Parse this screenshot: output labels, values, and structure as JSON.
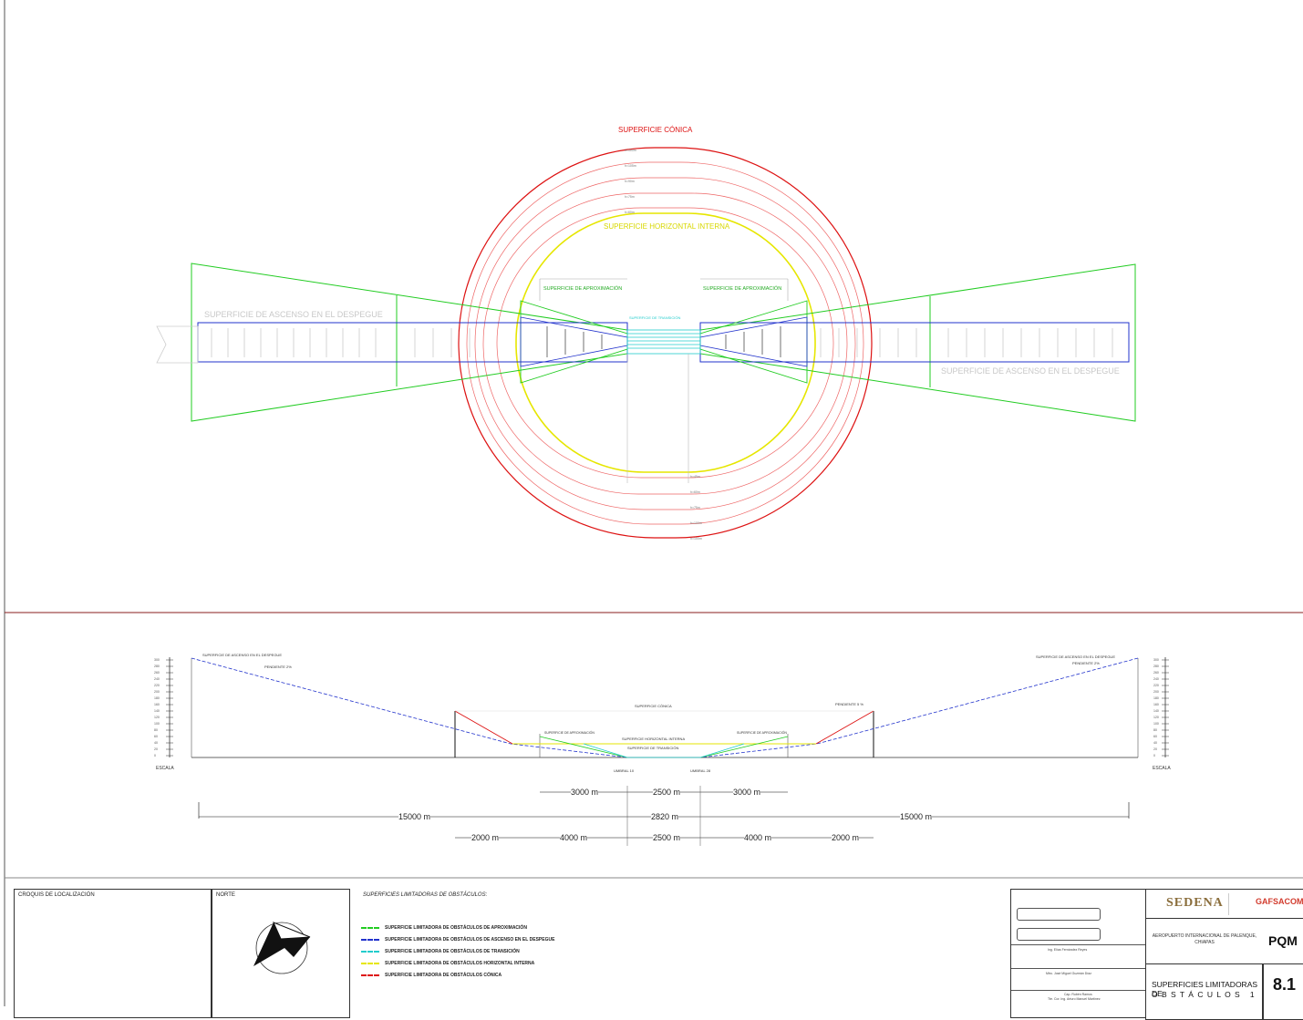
{
  "plan": {
    "conic_title": "SUPERFICIE CÓNICA",
    "horizontal_title": "SUPERFICIE HORIZONTAL INTERNA",
    "approach_left": "SUPERFICIE DE APROXIMACIÓN",
    "approach_right": "SUPERFICIE DE APROXIMACIÓN",
    "transition": "SUPERFICIE DE TRANSICIÓN",
    "takeoff_left": "SUPERFICIE DE ASCENSO EN EL DESPEGUE",
    "takeoff_right": "SUPERFICIE DE ASCENSO EN EL DESPEGUE",
    "ring_top": [
      "h=100m",
      "h=105m",
      "h=90m",
      "h=75m",
      "h=60m"
    ],
    "ring_bottom": [
      "h=45m",
      "h=60m",
      "h=75m",
      "h=100m",
      "h=100m"
    ]
  },
  "profile": {
    "takeoff_left": "SUPERFICIE DE ASCENSO EN EL DESPEGUE",
    "slope_left": "PENDIENTE 2%",
    "takeoff_right": "SUPERFICIE DE ASCENSO EN EL DESPEGUE",
    "slope_right": "PENDIENTE 2%",
    "conic": "SUPERFICIE CÓNICA",
    "slope_conic": "PENDIENTE 5 %",
    "horizontal": "SUPERFICIE HORIZONTAL INTERNA",
    "transition": "SUPERFICIE DE TRANSICIÓN",
    "approach_left": "SUPERFICIE DE APROXIMACIÓN",
    "approach_right": "SUPERFICIE DE APROXIMACIÓN",
    "threshold_left": "UMBRAL 10",
    "threshold_right": "UMBRAL 28",
    "scale_left": "ESCALA",
    "scale_right": "ESCALA",
    "scale_values": [
      "300",
      "280",
      "260",
      "240",
      "220",
      "200",
      "180",
      "160",
      "140",
      "120",
      "100",
      "80",
      "60",
      "40",
      "20",
      "0"
    ],
    "dims_row1": [
      "3000 m",
      "2500 m",
      "3000 m"
    ],
    "dims_row2": [
      "15000 m",
      "2820 m",
      "15000 m"
    ],
    "dims_row3": [
      "2000 m",
      "4000 m",
      "2500 m",
      "4000 m",
      "2000 m"
    ]
  },
  "footer": {
    "location_title": "CROQUIS DE LOCALIZACIÓN",
    "north_title": "NORTE",
    "legend_title": "SUPERFICIES LIMITADORAS DE OBSTÁCULOS:",
    "legend": [
      {
        "label": "SUPERFICIE LIMITADORA DE OBSTÁCULOS DE APROXIMACIÓN",
        "color": "#22cc22"
      },
      {
        "label": "SUPERFICIE LIMITADORA DE OBSTÁCULOS DE ASCENSO EN EL DESPEGUE",
        "color": "#2233cc"
      },
      {
        "label": "SUPERFICIE LIMITADORA DE OBSTÁCULOS DE TRANSICIÓN",
        "color": "#22cccc"
      },
      {
        "label": "SUPERFICIE LIMITADORA DE OBSTÁCULOS HORIZONTAL INTERNA",
        "color": "#e6e600"
      },
      {
        "label": "SUPERFICIE LIMITADORA DE OBSTÁCULOS CÓNICA",
        "color": "#dd1111"
      }
    ],
    "sedena": "SEDENA",
    "gafsacomm": "GAFSACOMM",
    "project": "AEROPUERTO INTERNACIONAL DE PALENQUE, CHIAPAS",
    "code": "PQM",
    "sheet_title_1": "SUPERFICIES LIMITADORAS DE",
    "sheet_title_2": "O B S T Á C U L O S   1",
    "sheet_number": "8.1",
    "info_fields": [
      "Ing. Elías Fernández Reyes",
      "Mtro. José Miguel Guzmán Díaz",
      "Cap. Rubén Ramos",
      "Tte. Cor. Ing. Arturo Manuel Martínez"
    ]
  },
  "colors": {
    "conic": "#dd1111",
    "horizontal": "#e6e600",
    "approach": "#22cc22",
    "takeoff": "#2233cc",
    "transition": "#22cccc",
    "frame": "#8a1c1c"
  }
}
